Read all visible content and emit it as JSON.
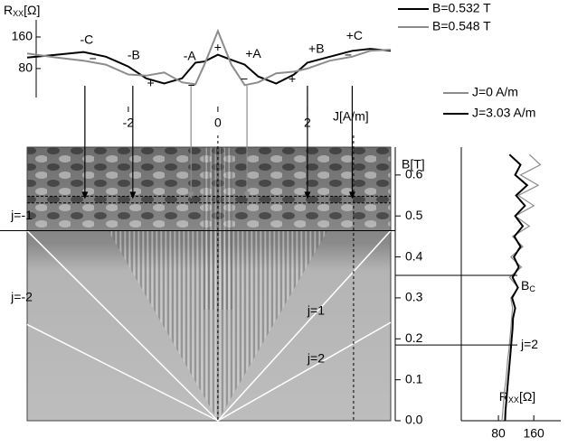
{
  "chart_data": [
    {
      "type": "line",
      "y_label": [
        "R",
        "XX",
        "[Ω]"
      ],
      "x_label": "J[A/m]",
      "xlim": [
        -4.26,
        3.86
      ],
      "xticks": [
        -2,
        0,
        2
      ],
      "ylim": [
        2,
        208
      ],
      "yticks": [
        80,
        160
      ],
      "x": [
        -4.26,
        -3.6,
        -3.0,
        -2.5,
        -2.0,
        -1.6,
        -1.2,
        -0.8,
        -0.5,
        -0.3,
        0,
        0.3,
        0.6,
        0.9,
        1.3,
        1.7,
        2.0,
        2.5,
        3.0,
        3.4,
        3.86
      ],
      "series": [
        {
          "name": "B=0.532 T",
          "color": "#000000",
          "values": [
            108,
            115,
            122,
            110,
            85,
            55,
            42,
            55,
            95,
            98,
            115,
            102,
            90,
            60,
            42,
            65,
            95,
            110,
            125,
            130,
            125
          ]
        },
        {
          "name": "B=0.548 T",
          "color": "#8c8c8c",
          "values": [
            118,
            108,
            100,
            90,
            65,
            62,
            70,
            45,
            40,
            90,
            175,
            90,
            38,
            45,
            68,
            72,
            80,
            100,
            110,
            125,
            128
          ]
        }
      ],
      "annotations": [
        {
          "text": "-C",
          "x": -2.93,
          "y": 151
        },
        {
          "text": "-B",
          "x": -1.88,
          "y": 112
        },
        {
          "text": "-A",
          "x": -0.63,
          "y": 110
        },
        {
          "text": "+A",
          "x": 0.79,
          "y": 116
        },
        {
          "text": "+B",
          "x": 2.2,
          "y": 128
        },
        {
          "text": "+C",
          "x": 3.05,
          "y": 162
        },
        {
          "text": "−",
          "x": -2.79,
          "y": 103
        },
        {
          "text": "+",
          "x": -1.5,
          "y": 41
        },
        {
          "text": "−",
          "x": -0.59,
          "y": 36
        },
        {
          "text": "+",
          "x": 0,
          "y": 132
        },
        {
          "text": "−",
          "x": 0.59,
          "y": 52
        },
        {
          "text": "+",
          "x": 1.66,
          "y": 52
        },
        {
          "text": "−",
          "x": 2.91,
          "y": 112
        }
      ]
    },
    {
      "type": "heatmap",
      "y_label": "B[T]",
      "xlim": [
        -4.26,
        3.86
      ],
      "ylim": [
        0,
        0.668
      ],
      "yticks": [
        {
          "value": 0,
          "label": "0.0"
        },
        0.1,
        0.2,
        0.3,
        0.4,
        0.5,
        0.6
      ],
      "cuts": [
        0.532,
        0.548
      ],
      "threshold": 0.464,
      "vertical_cuts": [
        0,
        3.03
      ],
      "arrows": [
        {
          "x": -2.97,
          "color": "#000000"
        },
        {
          "x": -1.9,
          "color": "#000000"
        },
        {
          "x": -0.6,
          "color": "#8c8c8c"
        },
        {
          "x": 0.65,
          "color": "#8c8c8c"
        },
        {
          "x": 2.0,
          "color": "#000000"
        },
        {
          "x": 3.0,
          "color": "#000000"
        }
      ],
      "fan_lines": [
        {
          "x": [
            0,
            -4.26
          ],
          "y": [
            0,
            0.464
          ]
        },
        {
          "x": [
            0,
            -4.26
          ],
          "y": [
            0,
            0.235
          ]
        },
        {
          "x": [
            0,
            3.86
          ],
          "y": [
            0,
            0.464
          ]
        },
        {
          "x": [
            0,
            3.86
          ],
          "y": [
            0,
            0.24
          ]
        }
      ],
      "annotations": [
        {
          "text": "j=-1",
          "x": -4.62,
          "y": 0.5
        },
        {
          "text": "j=-2",
          "x": -4.62,
          "y": 0.3
        },
        {
          "text": "j=1",
          "x": 2.0,
          "y": 0.267
        },
        {
          "text": "j=2",
          "x": 2.0,
          "y": 0.15
        }
      ]
    },
    {
      "type": "line",
      "orientation": "horizontal",
      "x_label": [
        "R",
        "XX",
        "[Ω]"
      ],
      "xlim": [
        -4,
        221
      ],
      "xticks": [
        80,
        160
      ],
      "ylim": [
        0,
        0.668
      ],
      "y": [
        0,
        0.025,
        0.05,
        0.075,
        0.1,
        0.125,
        0.15,
        0.175,
        0.2,
        0.225,
        0.25,
        0.275,
        0.3,
        0.325,
        0.35,
        0.375,
        0.4,
        0.425,
        0.45,
        0.475,
        0.5,
        0.525,
        0.55,
        0.575,
        0.6,
        0.625,
        0.65
      ],
      "series": [
        {
          "name": "J=0 A/m",
          "color": "#8c8c8c",
          "values": [
            88,
            90,
            92,
            94,
            97,
            99,
            101,
            104,
            106,
            108,
            110,
            112,
            108,
            125,
            105,
            132,
            108,
            135,
            112,
            150,
            118,
            160,
            125,
            170,
            130,
            175,
            150
          ]
        },
        {
          "name": "J=3.03 A/m",
          "color": "#000000",
          "values": [
            95,
            96,
            98,
            100,
            102,
            104,
            106,
            108,
            110,
            112,
            113,
            118,
            111,
            124,
            112,
            126,
            115,
            130,
            116,
            135,
            118,
            140,
            120,
            145,
            118,
            130,
            105
          ]
        }
      ],
      "markers": [
        {
          "label": [
            "B",
            "C"
          ],
          "value": 0.355
        },
        {
          "label": [
            "j=2"
          ],
          "value": 0.185
        }
      ]
    }
  ]
}
